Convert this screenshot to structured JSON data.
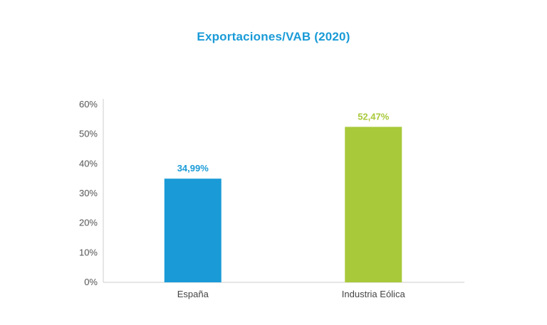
{
  "chart_data": {
    "type": "bar",
    "title": "Exportaciones/VAB (2020)",
    "xlabel": "",
    "ylabel": "",
    "categories": [
      "España",
      "Industria Eólica"
    ],
    "values": [
      34.99,
      52.47
    ],
    "data_labels": [
      "34,99%",
      "52,47%"
    ],
    "colors": [
      "#1a9bd7",
      "#a8c93a"
    ],
    "ylim": [
      0,
      60
    ],
    "yticks": [
      0,
      10,
      20,
      30,
      40,
      50,
      60
    ],
    "ytick_labels": [
      "0%",
      "10%",
      "20%",
      "30%",
      "40%",
      "50%",
      "60%"
    ],
    "grid": false,
    "legend": "none"
  },
  "colors": {
    "title": "#1a9bd7",
    "axis": "#cccccc"
  }
}
